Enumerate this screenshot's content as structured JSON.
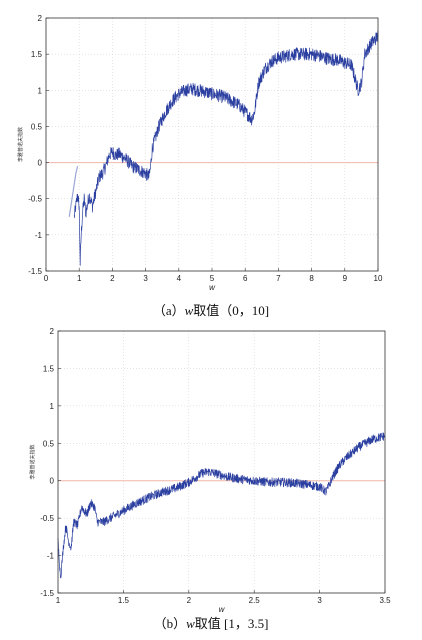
{
  "chart_data": [
    {
      "type": "line",
      "caption_prefix": "（a）",
      "caption_var": "w",
      "caption_rest": "取值（0，10]",
      "xlabel": "w",
      "ylabel": "李雅普诺夫指数",
      "xlim": [
        0,
        10
      ],
      "ylim": [
        -1.5,
        2
      ],
      "xticks": [
        "0",
        "1",
        "2",
        "3",
        "4",
        "5",
        "6",
        "7",
        "8",
        "9",
        "10"
      ],
      "yticks": [
        "2",
        "1.5",
        "1",
        "0.5",
        "0",
        "-0.5",
        "-1",
        "-1.5"
      ],
      "grid": true,
      "zero_line": true,
      "colors": {
        "series": "#2b3fa0",
        "zero_line": "#f0b8a8",
        "grid": "#d4d4d4"
      },
      "series": [
        {
          "color": "#2b3fa0",
          "noise": 0.09,
          "x": [
            0.85,
            0.9,
            0.95,
            1.0,
            1.03,
            1.06,
            1.1,
            1.15,
            1.2,
            1.3,
            1.4,
            1.5,
            1.6,
            1.7,
            1.8,
            1.9,
            2.0,
            2.1,
            2.2,
            2.4,
            2.6,
            2.8,
            3.0,
            3.1,
            3.14,
            3.2,
            3.4,
            3.6,
            3.8,
            4.0,
            4.2,
            4.4,
            4.6,
            4.8,
            5.0,
            5.2,
            5.4,
            5.6,
            5.8,
            6.0,
            6.2,
            6.28,
            6.4,
            6.6,
            6.8,
            7.0,
            7.2,
            7.4,
            7.6,
            7.8,
            8.0,
            8.2,
            8.4,
            8.6,
            8.8,
            9.0,
            9.2,
            9.4,
            9.5,
            9.6,
            9.8,
            10.0
          ],
          "y": [
            -0.75,
            -0.6,
            -0.45,
            -0.6,
            -1.4,
            -1.0,
            -0.7,
            -0.5,
            -0.7,
            -0.45,
            -0.6,
            -0.4,
            -0.2,
            -0.15,
            -0.05,
            0.1,
            0.15,
            0.1,
            0.12,
            0.05,
            -0.05,
            -0.1,
            -0.15,
            -0.2,
            -0.1,
            0.2,
            0.5,
            0.7,
            0.85,
            0.95,
            1.0,
            1.02,
            1.0,
            0.98,
            0.95,
            0.93,
            0.9,
            0.85,
            0.8,
            0.7,
            0.6,
            0.7,
            1.1,
            1.3,
            1.4,
            1.45,
            1.47,
            1.5,
            1.5,
            1.5,
            1.5,
            1.48,
            1.45,
            1.43,
            1.42,
            1.38,
            1.35,
            1.0,
            1.1,
            1.5,
            1.65,
            1.75
          ]
        },
        {
          "color": "#9aa6d6",
          "noise": 0,
          "x": [
            0.7,
            0.75,
            0.8,
            0.85,
            0.9,
            0.95
          ],
          "y": [
            -0.75,
            -0.6,
            -0.45,
            -0.3,
            -0.15,
            -0.05
          ]
        }
      ]
    },
    {
      "type": "line",
      "caption_prefix": "（b）",
      "caption_var": "w",
      "caption_rest": "取值 [1，3.5]",
      "xlabel": "w",
      "ylabel": "李雅普诺夫指数",
      "xlim": [
        1,
        3.5
      ],
      "ylim": [
        -1.5,
        2
      ],
      "xticks": [
        "1",
        "1.5",
        "2",
        "2.5",
        "3",
        "3.5"
      ],
      "yticks": [
        "2",
        "1.5",
        "1",
        "0.5",
        "0",
        "-0.5",
        "-1",
        "-1.5"
      ],
      "grid": true,
      "zero_line": true,
      "colors": {
        "series": "#2b3fa0",
        "zero_line": "#f0b8a8",
        "grid": "#d4d4d4"
      },
      "series": [
        {
          "color": "#2b3fa0",
          "noise": 0.06,
          "x": [
            1.0,
            1.02,
            1.04,
            1.06,
            1.08,
            1.1,
            1.12,
            1.15,
            1.18,
            1.22,
            1.25,
            1.28,
            1.3,
            1.35,
            1.4,
            1.5,
            1.6,
            1.7,
            1.8,
            1.9,
            2.0,
            2.1,
            2.15,
            2.2,
            2.3,
            2.4,
            2.5,
            2.6,
            2.7,
            2.8,
            2.9,
            3.0,
            3.05,
            3.1,
            3.15,
            3.2,
            3.3,
            3.4,
            3.5
          ],
          "y": [
            -0.8,
            -1.3,
            -0.9,
            -0.6,
            -0.8,
            -0.9,
            -0.55,
            -0.6,
            -0.35,
            -0.45,
            -0.3,
            -0.35,
            -0.55,
            -0.55,
            -0.5,
            -0.4,
            -0.3,
            -0.22,
            -0.15,
            -0.1,
            -0.02,
            0.1,
            0.12,
            0.1,
            0.05,
            0.02,
            0.0,
            -0.02,
            -0.02,
            -0.03,
            -0.05,
            -0.08,
            -0.15,
            0.05,
            0.2,
            0.3,
            0.45,
            0.55,
            0.6
          ]
        }
      ]
    }
  ]
}
